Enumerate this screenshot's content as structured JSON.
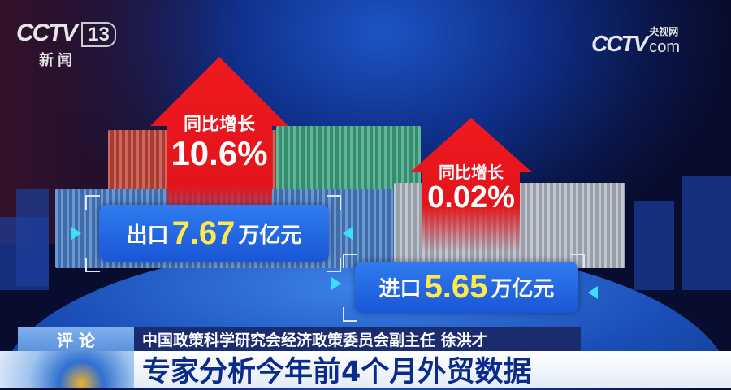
{
  "channel_logo": {
    "brand": "CCTV",
    "number": "13",
    "name": "新 闻"
  },
  "watermark": {
    "brand": "CCTV",
    "domain": "com",
    "name": "央视网"
  },
  "export": {
    "growth_label": "同比增长",
    "growth_value": "10.6%",
    "label": "出口",
    "value": "7.67",
    "unit": "万亿元"
  },
  "import": {
    "growth_label": "同比增长",
    "growth_value": "0.02%",
    "label": "进口",
    "value": "5.65",
    "unit": "万亿元"
  },
  "colors": {
    "arrow": "#e8141c",
    "value": "#ffe84a",
    "box": "#2366e0",
    "headline": "#0a2a8c"
  },
  "lower_third": {
    "tag": "评 论",
    "speaker": "中国政策科学研究会经济政策委员会副主任 徐洪才",
    "headline": "专家分析今年前4个月外贸数据"
  }
}
